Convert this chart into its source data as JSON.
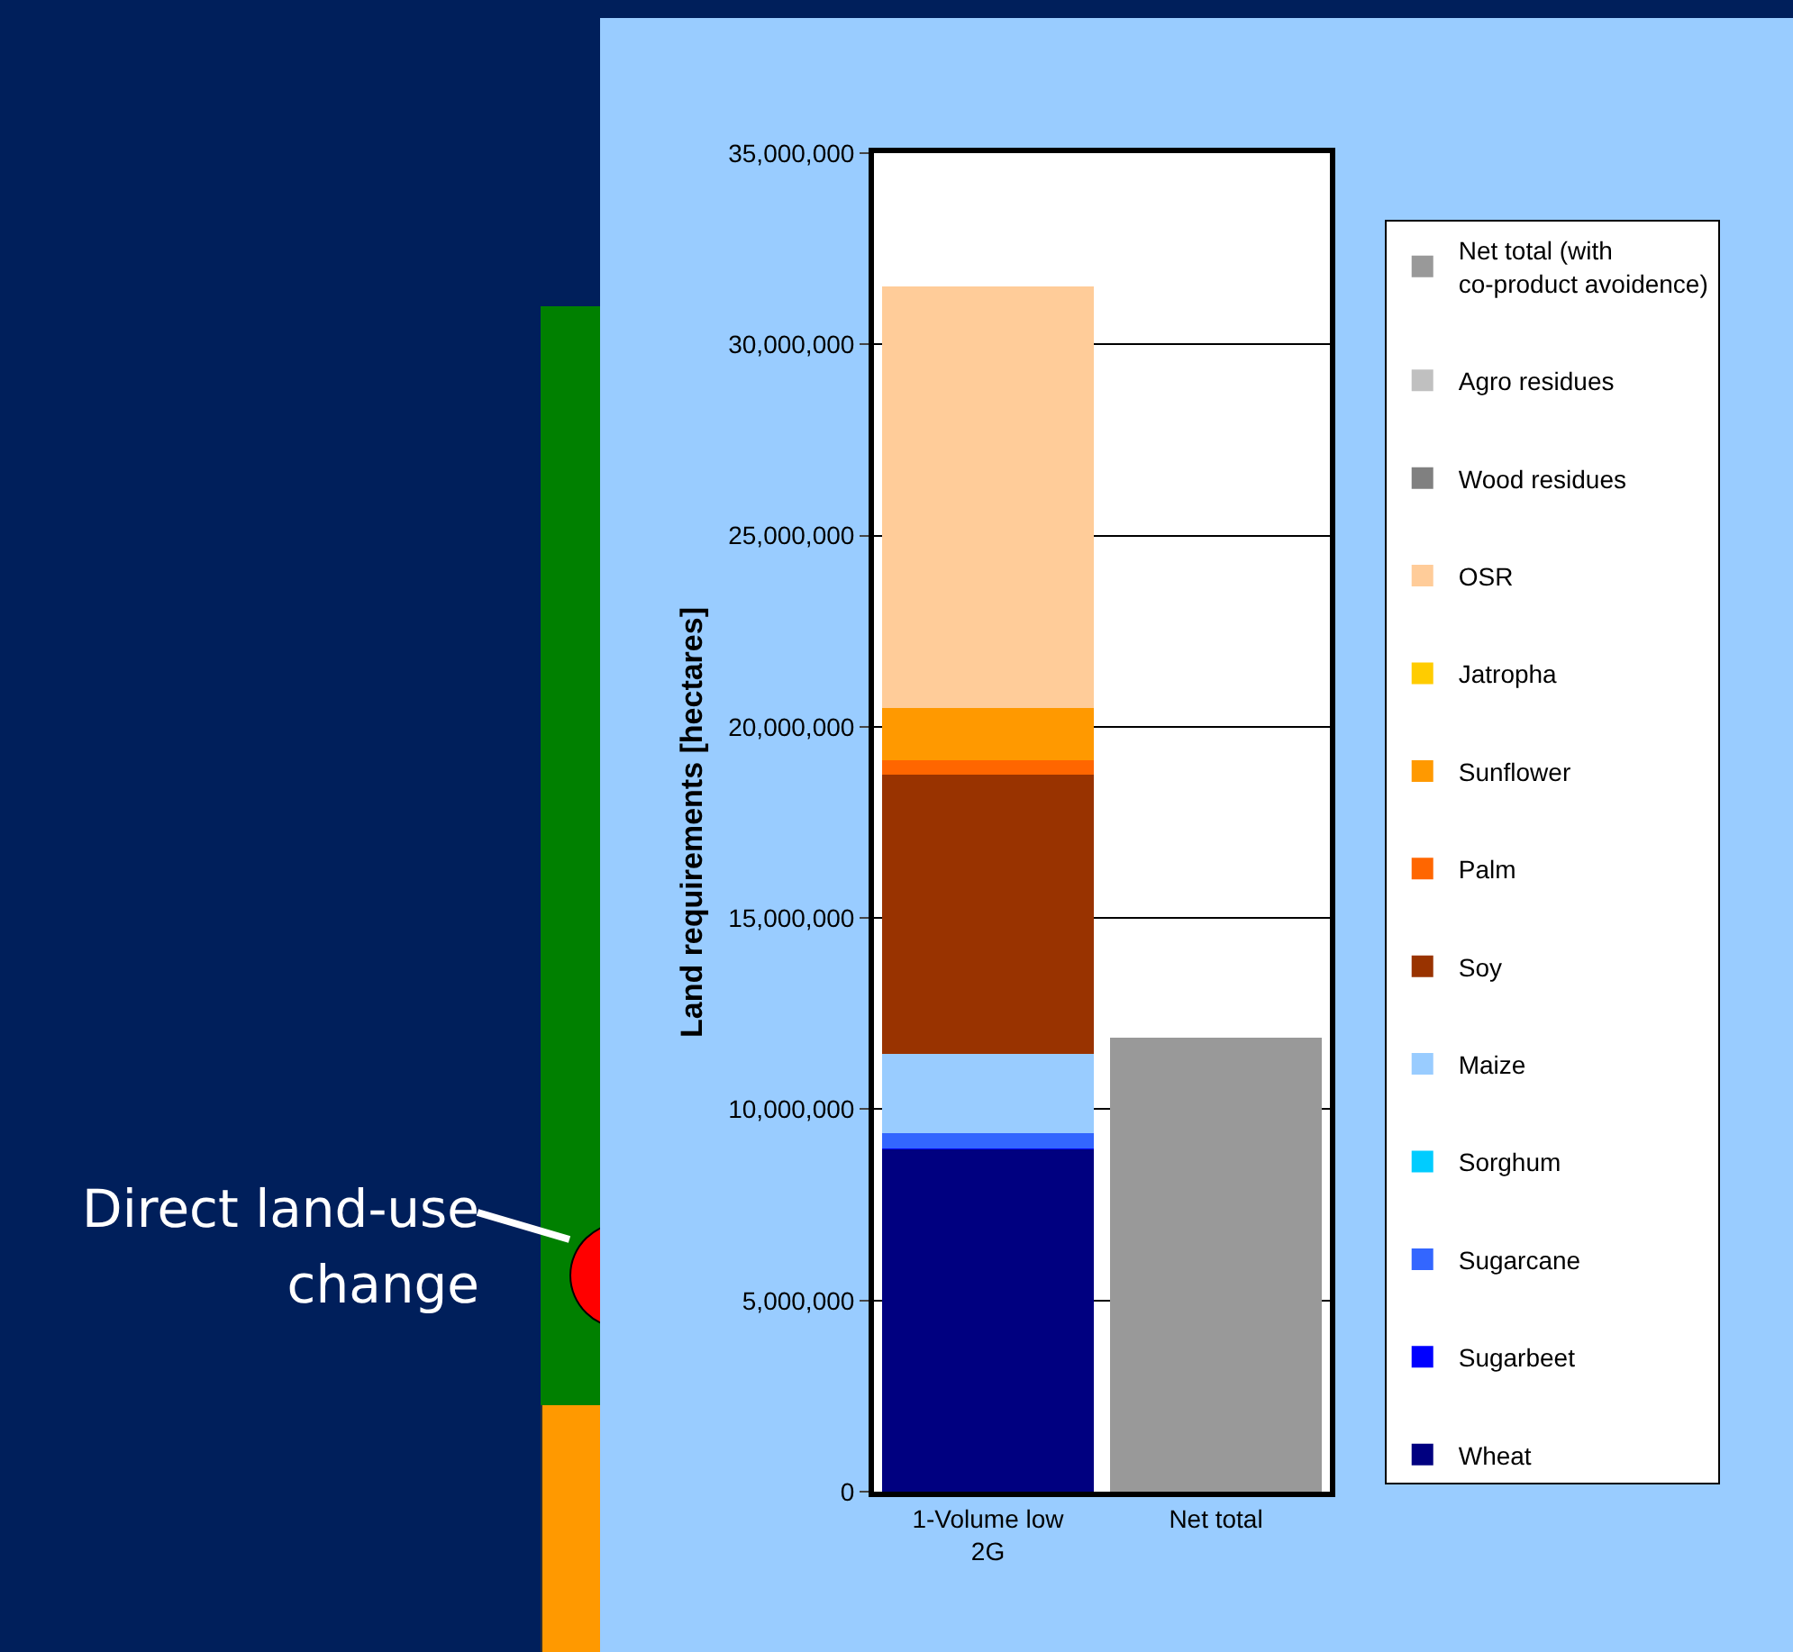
{
  "chart_data": {
    "type": "bar",
    "stacked": true,
    "ylabel": "Land requirements [hectares]",
    "categories": [
      "1-Volume low 2G",
      "Net total"
    ],
    "series": [
      {
        "name": "Wheat",
        "color": "#000080",
        "values": [
          8940000,
          null
        ]
      },
      {
        "name": "Sugarbeet",
        "color": "#0000ff",
        "values": [
          40000,
          null
        ]
      },
      {
        "name": "Sugarcane",
        "color": "#3366ff",
        "values": [
          390000,
          null
        ]
      },
      {
        "name": "Sorghum",
        "color": "#00ccff",
        "values": [
          0,
          null
        ]
      },
      {
        "name": "Maize",
        "color": "#99ccff",
        "values": [
          2080000,
          null
        ]
      },
      {
        "name": "Soy",
        "color": "#993300",
        "values": [
          7300000,
          null
        ]
      },
      {
        "name": "Palm",
        "color": "#ff6600",
        "values": [
          380000,
          null
        ]
      },
      {
        "name": "Sunflower",
        "color": "#ff9900",
        "values": [
          1360000,
          null
        ]
      },
      {
        "name": "Jatropha",
        "color": "#ffcc00",
        "values": [
          0,
          null
        ]
      },
      {
        "name": "OSR",
        "color": "#ffcc99",
        "values": [
          11020000,
          null
        ]
      },
      {
        "name": "Wood residues",
        "color": "#808080",
        "values": [
          0,
          null
        ]
      },
      {
        "name": "Agro residues",
        "color": "#c0c0c0",
        "values": [
          0,
          null
        ]
      },
      {
        "name": "Net total (with co-product avoidence)",
        "color": "#999999",
        "values": [
          null,
          11870000
        ]
      }
    ],
    "ylim": [
      0,
      35000000
    ],
    "yticks": [
      0,
      {
        "value": 5000000,
        "label": "5,000,000"
      },
      {
        "value": 10000000,
        "label": "10,000,000"
      },
      {
        "value": 15000000,
        "label": "15,000,000"
      },
      {
        "value": 20000000,
        "label": "20,000,000"
      },
      {
        "value": 25000000,
        "label": "25,000,000"
      },
      {
        "value": 30000000,
        "label": "30,000,000"
      },
      {
        "value": 35000000,
        "label": "35,000,000"
      }
    ],
    "grid": "y",
    "legend": "right",
    "annotations": [
      "Direct land-use change"
    ]
  }
}
